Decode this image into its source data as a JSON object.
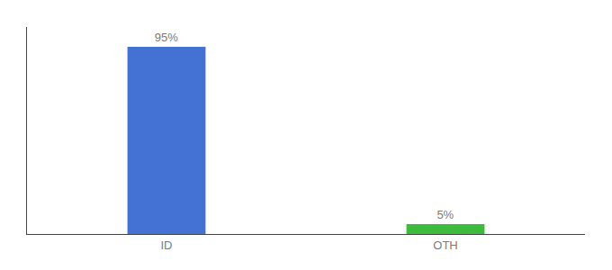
{
  "chart_data": {
    "type": "bar",
    "categories": [
      "ID",
      "OTH"
    ],
    "values": [
      95,
      5
    ],
    "value_labels": [
      "95%",
      "5%"
    ],
    "data_labels": true,
    "colors": [
      "#4472d4",
      "#3dbb3d"
    ],
    "ylim": [
      0,
      105
    ],
    "yticks": [],
    "tick_labels": "x",
    "grid": false
  }
}
